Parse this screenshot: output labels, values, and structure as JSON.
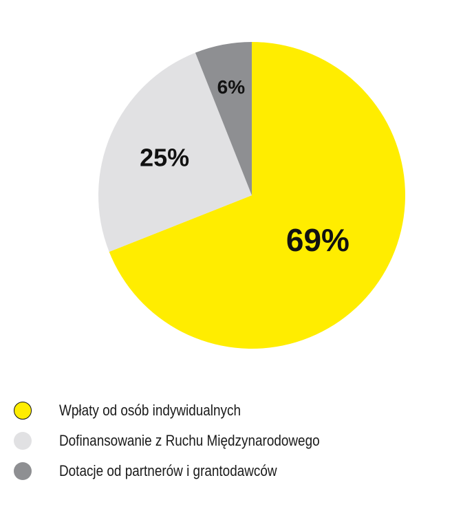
{
  "chart_data": {
    "type": "pie",
    "slices": [
      {
        "label": "Wpłaty od osób indywidualnych",
        "value": 69,
        "display": "69%",
        "color": "#FFED00"
      },
      {
        "label": "Dofinansowanie z Ruchu Międzynarodowego",
        "value": 25,
        "display": "25%",
        "color": "#E1E1E3"
      },
      {
        "label": "Dotacje od partnerów i grantodawców",
        "value": 6,
        "display": "6%",
        "color": "#8E8F92"
      }
    ],
    "start": "12 o'clock",
    "direction": "clockwise",
    "legend_placement": "bottom-left"
  }
}
